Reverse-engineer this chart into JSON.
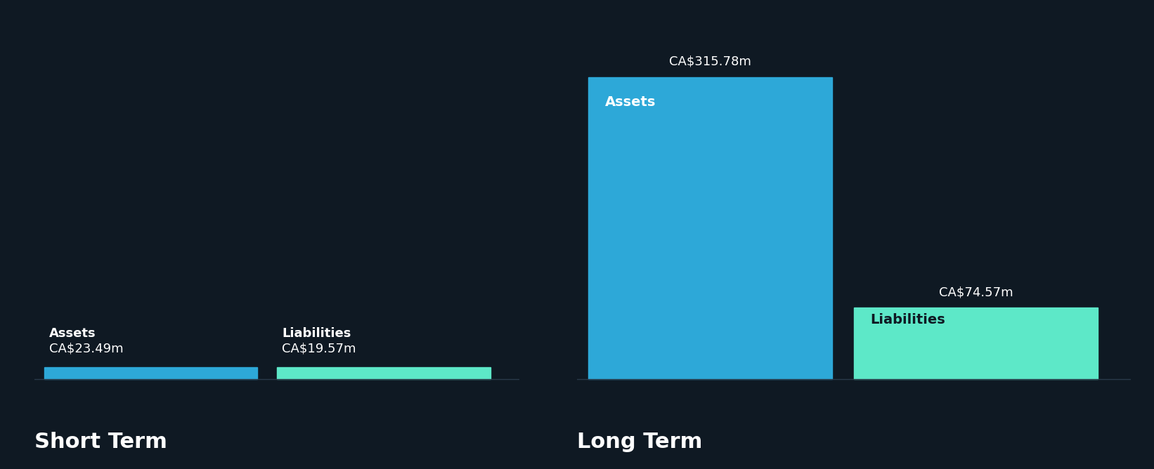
{
  "background_color": "#0f1923",
  "short_term": {
    "assets_value": 23.49,
    "liabilities_value": 19.57,
    "assets_label": "Assets",
    "liabilities_label": "Liabilities",
    "assets_color": "#2da8d8",
    "liabilities_color": "#5de8c8",
    "title": "Short Term"
  },
  "long_term": {
    "assets_value": 315.78,
    "liabilities_value": 74.57,
    "assets_label": "Assets",
    "liabilities_label": "Liabilities",
    "assets_color": "#2da8d8",
    "liabilities_color": "#5de8c8",
    "title": "Long Term"
  },
  "text_color": "#ffffff",
  "dark_text_color": "#0f1923",
  "label_fontsize": 13,
  "value_fontsize": 13,
  "title_fontsize": 22,
  "inside_label_fontsize": 14
}
